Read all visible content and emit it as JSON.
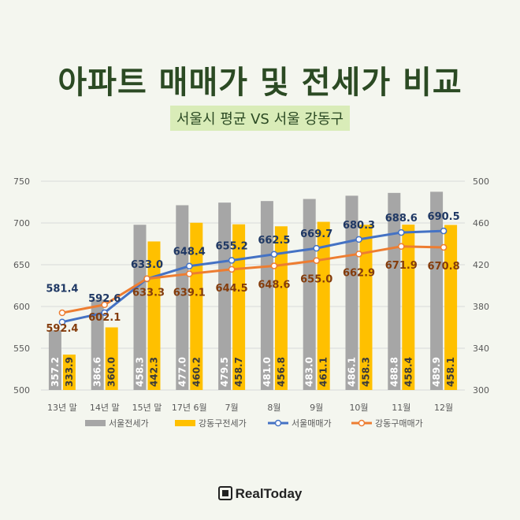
{
  "title": "아파트 매매가 및 전세가 비교",
  "subtitle": "서울시 평균 VS 서울 강동구",
  "logo_text": "RealToday",
  "colors": {
    "bar_seoul": "#a6a6a6",
    "bar_gangdong": "#ffc000",
    "line_seoul": "#4472c4",
    "line_gangdong": "#ed7d31",
    "label_seoul": "#1f3864",
    "label_gangdong": "#843c0c"
  },
  "chart_data": {
    "type": "bar+line",
    "categories": [
      "13년 말",
      "14년 말",
      "15년 말",
      "17년 6월",
      "7월",
      "8월",
      "9월",
      "10월",
      "11월",
      "12월"
    ],
    "left_axis": {
      "ylim": [
        500,
        750
      ],
      "ticks": [
        500,
        550,
        600,
        650,
        700,
        750
      ]
    },
    "right_axis": {
      "ylim": [
        300,
        500
      ],
      "ticks": [
        300,
        340,
        380,
        420,
        460,
        500
      ]
    },
    "bars": [
      {
        "name": "서울전세가",
        "values": [
          357.2,
          386.6,
          458.3,
          477.0,
          479.5,
          481.0,
          483.0,
          486.1,
          488.8,
          489.9
        ],
        "labels": [
          "357.2",
          "386.6",
          "458.3",
          "477.0",
          "479.5",
          "481.0",
          "483.0",
          "486.1",
          "488.8",
          "489.9"
        ]
      },
      {
        "name": "강동구전세가",
        "values": [
          333.9,
          360.0,
          442.3,
          460.2,
          458.7,
          456.8,
          461.1,
          458.3,
          458.4,
          458.1
        ],
        "labels": [
          "333.9",
          "360.0",
          "442.3",
          "460.2",
          "458.7",
          "456.8",
          "461.1",
          "458.3",
          "458.4",
          "458.1"
        ]
      }
    ],
    "lines": [
      {
        "name": "서울매매가",
        "values": [
          581.4,
          592.6,
          633.0,
          648.4,
          655.2,
          662.5,
          669.7,
          680.3,
          688.6,
          690.5
        ],
        "labels": [
          "581.4",
          "592.6",
          "633.0",
          "648.4",
          "655.2",
          "662.5",
          "669.7",
          "680.3",
          "688.6",
          "690.5"
        ]
      },
      {
        "name": "강동구매매가",
        "values": [
          592.4,
          602.1,
          633.3,
          639.1,
          644.5,
          648.6,
          655.0,
          662.9,
          671.9,
          670.8
        ],
        "labels": [
          "592.4",
          "602.1",
          "633.3",
          "639.1",
          "644.5",
          "648.6",
          "655.0",
          "662.9",
          "671.9",
          "670.8"
        ]
      }
    ]
  }
}
